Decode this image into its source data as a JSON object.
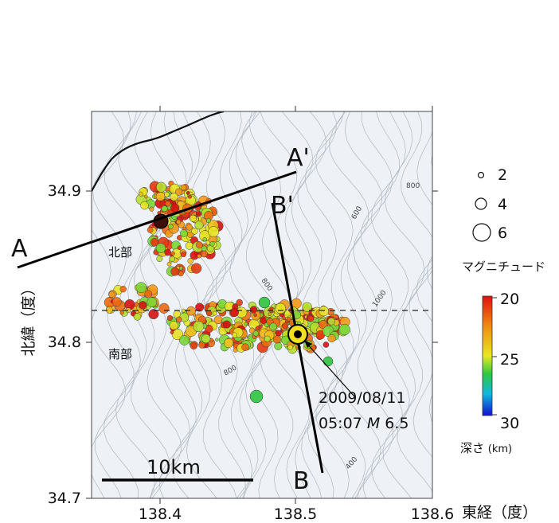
{
  "map": {
    "ticks_lon": [
      "138.4",
      "138.5",
      "138.6"
    ],
    "ticks_lat": [
      "34.9",
      "34.8",
      "34.7"
    ],
    "x_axis_title": "東経（度）",
    "y_axis_title": "北緯（度）",
    "scale_bar": "10km",
    "region_labels": {
      "north": "北部",
      "south": "南部"
    },
    "section_labels": {
      "a": "A",
      "a_prime": "A'",
      "b": "B",
      "b_prime": "B'"
    },
    "mainshock": {
      "date": "2009/08/11",
      "time": "05:07",
      "mag_symbol": "M",
      "magnitude": "6.5"
    },
    "contour_labels": [
      "800",
      "600",
      "800",
      "1000",
      "800",
      "400"
    ]
  },
  "legend": {
    "magnitude_title": "マグニチュード",
    "magnitude_values": [
      "2",
      "4",
      "6"
    ],
    "depth_title": "深さ",
    "depth_unit": "(km)",
    "depth_ticks": [
      "20",
      "25",
      "30"
    ]
  },
  "colors": {
    "shallow": "#e01010",
    "mid_depth": "#e8e820",
    "deeper": "#20c040",
    "deepest": "#1010d0",
    "sea": "#e9eff6",
    "land_line": "#111111"
  }
}
